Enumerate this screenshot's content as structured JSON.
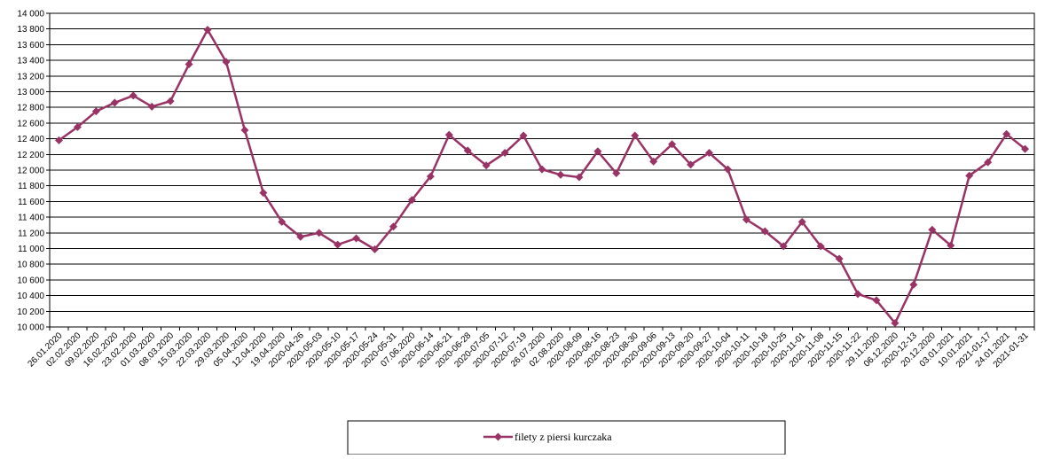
{
  "chart_data": {
    "type": "line",
    "title": "",
    "xlabel": "",
    "ylabel": "",
    "ylim": [
      10000,
      14000
    ],
    "y_ticks": [
      "10 000",
      "10 200",
      "10 400",
      "10 600",
      "10 800",
      "11 000",
      "11 200",
      "11 400",
      "11 600",
      "11 800",
      "12 000",
      "12 200",
      "12 400",
      "12 600",
      "12 800",
      "13 000",
      "13 200",
      "13 400",
      "13 600",
      "13 800",
      "14 000"
    ],
    "grid": true,
    "legend_position": "bottom",
    "series_color": "#993366",
    "categories": [
      "26.01.2020",
      "02.02.2020",
      "09.02.2020",
      "16.02.2020",
      "23.02.2020",
      "01.03.2020",
      "08.03.2020",
      "15.03.2020",
      "22.03.2020",
      "29.03.2020",
      "05.04.2020",
      "12.04.2020",
      "19.04.2020",
      "2020-04-26",
      "2020-05-03",
      "2020-05-10",
      "2020-05-17",
      "2020-05-24",
      "2020-05-31",
      "07.06.2020",
      "2020-06-14",
      "2020-06-21",
      "2020-06-28",
      "2020-07-05",
      "2020-07-12",
      "2020-07-19",
      "26.07.2020",
      "02.08.2020",
      "2020-08-09",
      "2020-08-16",
      "2020-08-23",
      "2020-08-30",
      "2020-09-06",
      "2020-09-13",
      "2020-09-20",
      "2020-09-27",
      "2020-10-04",
      "2020-10-11",
      "2020-10-18",
      "2020-10-25",
      "2020-11-01",
      "2020-11-08",
      "2020-11-15",
      "2020-11-22",
      "29.11.2020",
      "06.12.2020",
      "2020-12-13",
      "20.12.2020",
      "03.01.2021",
      "10.01.2021",
      "2021-01-17",
      "24.01.2021",
      "2021-01-31"
    ],
    "series": [
      {
        "name": "filety z piersi kurczaka",
        "values": [
          12380,
          12550,
          12750,
          12860,
          12950,
          12810,
          12880,
          13350,
          13790,
          13380,
          12510,
          11710,
          11340,
          11150,
          11200,
          11050,
          11130,
          10990,
          11280,
          11620,
          11920,
          12450,
          12250,
          12060,
          12220,
          12440,
          12010,
          11940,
          11910,
          12240,
          11960,
          12440,
          12110,
          12330,
          12070,
          12220,
          12010,
          11370,
          11220,
          11030,
          11340,
          11030,
          10870,
          10420,
          10340,
          10050,
          10540,
          11240,
          11040,
          11930,
          12100,
          12460,
          12270
        ]
      }
    ]
  }
}
